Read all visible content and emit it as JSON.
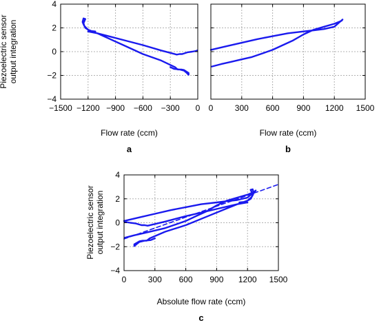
{
  "chart_data": [
    {
      "id": "a",
      "type": "line",
      "panel_label": "a",
      "xlabel": "Flow rate (ccm)",
      "ylabel_lines": [
        "Piezoelectric sensor",
        "output integration"
      ],
      "xlim": [
        -1500,
        0
      ],
      "ylim": [
        -4,
        4
      ],
      "xticks": [
        -1500,
        -1200,
        -900,
        -600,
        -300,
        0
      ],
      "xtick_labels": [
        "−1500",
        "−1200",
        "−900",
        "−600",
        "−300",
        "0"
      ],
      "yticks": [
        -4,
        -2,
        0,
        2,
        4
      ],
      "ytick_labels": [
        "−4",
        "−2",
        "0",
        "2",
        "4"
      ],
      "grid": true,
      "series": [
        {
          "color": "#1a1aee",
          "style": "solid",
          "x": [
            -5,
            -20,
            -60,
            -110,
            -150,
            -170,
            -200,
            -230,
            -400,
            -600,
            -800,
            -1000,
            -1100,
            -1150,
            -1180,
            -1200,
            -1230,
            -1250,
            -1260,
            -1250,
            -1230,
            -1250,
            -1240,
            -1200,
            -1150,
            -1120,
            -1180,
            -1200,
            -1100,
            -1000,
            -800,
            -600,
            -400,
            -250,
            -220,
            -200,
            -180,
            -150,
            -100,
            -100,
            -120,
            -150,
            -200,
            -260,
            -300
          ],
          "y": [
            0.1,
            0.05,
            0.0,
            -0.05,
            -0.15,
            -0.2,
            -0.2,
            -0.25,
            0.1,
            0.55,
            0.95,
            1.35,
            1.55,
            1.65,
            1.75,
            1.85,
            2.0,
            2.3,
            2.5,
            2.8,
            2.75,
            2.4,
            2.15,
            1.85,
            1.7,
            1.7,
            1.75,
            1.7,
            1.55,
            1.2,
            0.5,
            -0.2,
            -0.75,
            -1.3,
            -1.5,
            -1.5,
            -1.5,
            -1.55,
            -1.8,
            -1.95,
            -1.8,
            -1.6,
            -1.5,
            -1.45,
            -1.3
          ]
        }
      ]
    },
    {
      "id": "b",
      "type": "line",
      "panel_label": "b",
      "xlabel": "Flow rate (ccm)",
      "xlim": [
        0,
        1500
      ],
      "ylim": [
        -4,
        4
      ],
      "xticks": [
        0,
        300,
        600,
        900,
        1200,
        1500
      ],
      "xtick_labels": [
        "0",
        "300",
        "600",
        "900",
        "1200",
        "1500"
      ],
      "yticks": [
        -4,
        -2,
        0,
        2,
        4
      ],
      "grid": true,
      "series": [
        {
          "color": "#1a1aee",
          "style": "solid",
          "x": [
            0,
            150,
            300,
            450,
            600,
            750,
            900,
            1000,
            1100,
            1200,
            1280,
            1270,
            1200,
            1100,
            1000,
            900,
            800,
            700,
            600,
            500,
            400,
            300,
            200,
            100,
            10
          ],
          "y": [
            0.15,
            0.45,
            0.75,
            1.05,
            1.3,
            1.55,
            1.7,
            1.8,
            1.9,
            2.1,
            2.7,
            2.6,
            2.35,
            2.1,
            1.85,
            1.45,
            0.95,
            0.55,
            0.15,
            -0.15,
            -0.45,
            -0.65,
            -0.85,
            -1.05,
            -1.25
          ]
        }
      ]
    },
    {
      "id": "c",
      "type": "line",
      "panel_label": "c",
      "xlabel": "Absolute flow rate (ccm)",
      "ylabel_lines": [
        "Piezoelectric sensor",
        "output integration"
      ],
      "xlim": [
        0,
        1500
      ],
      "ylim": [
        -4,
        4
      ],
      "xticks": [
        0,
        300,
        600,
        900,
        1200,
        1500
      ],
      "xtick_labels": [
        "0",
        "300",
        "600",
        "900",
        "1200",
        "1500"
      ],
      "yticks": [
        -4,
        -2,
        0,
        2,
        4
      ],
      "ytick_labels": [
        "−4",
        "−2",
        "0",
        "2",
        "4"
      ],
      "grid": true,
      "series": [
        {
          "color": "#1a1aee",
          "style": "solid",
          "x": [
            5,
            20,
            60,
            110,
            150,
            170,
            200,
            230,
            400,
            600,
            800,
            1000,
            1100,
            1150,
            1180,
            1200,
            1230,
            1250,
            1260,
            1250,
            1230,
            1250,
            1240,
            1200,
            1150,
            1120,
            1180,
            1200,
            1100,
            1000,
            800,
            600,
            400,
            250,
            220,
            200,
            180,
            150,
            100,
            100,
            120,
            150,
            200,
            260,
            300
          ],
          "y": [
            0.1,
            0.05,
            0.0,
            -0.05,
            -0.15,
            -0.2,
            -0.2,
            -0.25,
            0.1,
            0.55,
            0.95,
            1.35,
            1.55,
            1.65,
            1.75,
            1.85,
            2.0,
            2.3,
            2.5,
            2.8,
            2.75,
            2.4,
            2.15,
            1.85,
            1.7,
            1.7,
            1.75,
            1.7,
            1.55,
            1.2,
            0.5,
            -0.2,
            -0.75,
            -1.3,
            -1.5,
            -1.5,
            -1.5,
            -1.55,
            -1.8,
            -1.95,
            -1.8,
            -1.6,
            -1.5,
            -1.45,
            -1.3
          ]
        },
        {
          "color": "#1a1aee",
          "style": "solid",
          "x": [
            0,
            150,
            300,
            450,
            600,
            750,
            900,
            1000,
            1100,
            1200,
            1280,
            1270,
            1200,
            1100,
            1000,
            900,
            800,
            700,
            600,
            500,
            400,
            300,
            200,
            100,
            10
          ],
          "y": [
            0.15,
            0.45,
            0.75,
            1.05,
            1.3,
            1.55,
            1.7,
            1.8,
            1.9,
            2.1,
            2.7,
            2.6,
            2.35,
            2.1,
            1.85,
            1.45,
            0.95,
            0.55,
            0.15,
            -0.15,
            -0.45,
            -0.65,
            -0.85,
            -1.05,
            -1.25
          ]
        },
        {
          "color": "#1a1aee",
          "style": "dashed",
          "x": [
            0,
            1500
          ],
          "y": [
            -1.35,
            3.2
          ]
        }
      ]
    }
  ]
}
